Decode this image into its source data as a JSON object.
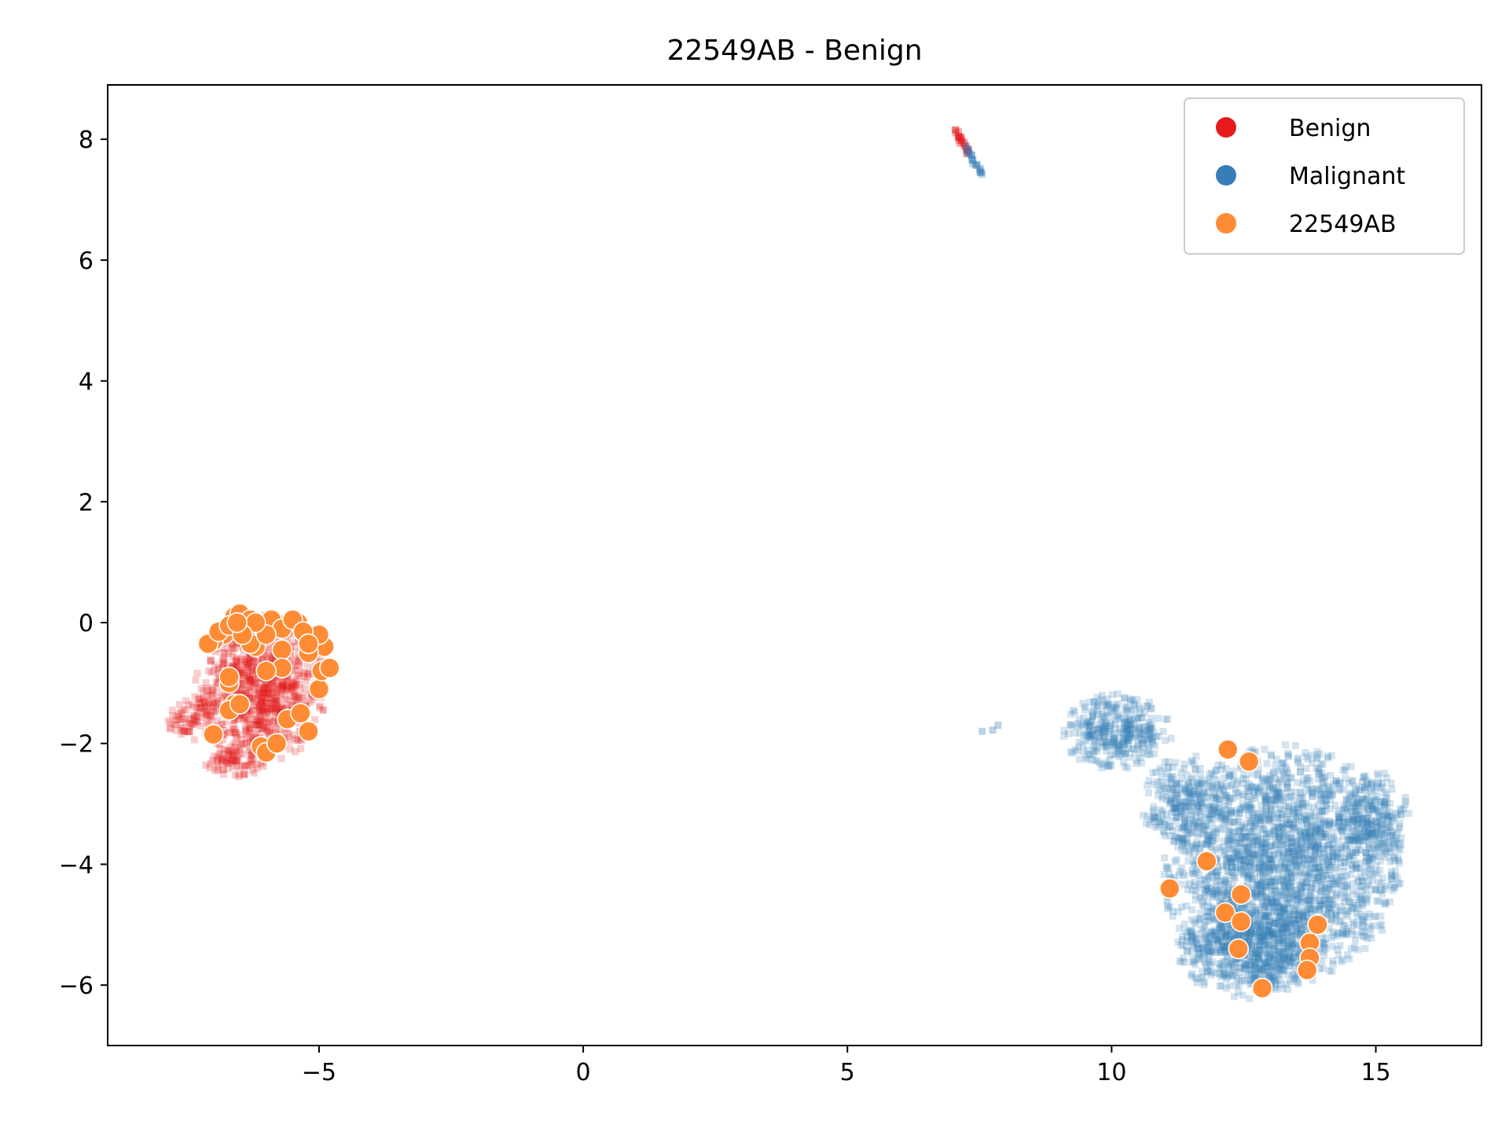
{
  "chart_data": {
    "type": "scatter",
    "title": "22549AB - Benign",
    "xlabel": "",
    "ylabel": "",
    "xlim": [
      -9.0,
      17.0
    ],
    "ylim": [
      -7.0,
      8.9
    ],
    "xticks": [
      -5,
      0,
      5,
      10,
      15
    ],
    "yticks": [
      -6,
      -4,
      -2,
      0,
      2,
      4,
      6,
      8
    ],
    "xtick_labels": [
      "−5",
      "0",
      "5",
      "10",
      "15"
    ],
    "ytick_labels": [
      "−6",
      "−4",
      "−2",
      "0",
      "2",
      "4",
      "6",
      "8"
    ],
    "grid": false,
    "legend_position": "top-right",
    "legend": [
      {
        "label": "Benign",
        "color": "#e41a1c"
      },
      {
        "label": "Malignant",
        "color": "#377eb8"
      },
      {
        "label": "22549AB",
        "color": "#ff8c35"
      }
    ],
    "background_series": [
      {
        "name": "Benign",
        "color": "#e41a1c",
        "clusters": [
          {
            "cx": -6.1,
            "cy": -1.1,
            "rx": 1.2,
            "ry": 1.2,
            "count": 900
          },
          {
            "cx": -7.4,
            "cy": -1.6,
            "rx": 0.5,
            "ry": 0.35,
            "count": 80
          },
          {
            "cx": -6.6,
            "cy": -2.3,
            "rx": 0.6,
            "ry": 0.25,
            "count": 80
          }
        ],
        "segments": [
          {
            "x0": 7.05,
            "y0": 8.15,
            "x1": 7.3,
            "y1": 7.75,
            "count": 25
          }
        ]
      },
      {
        "name": "Malignant",
        "color": "#377eb8",
        "clusters": [
          {
            "cx": 13.2,
            "cy": -4.0,
            "rx": 2.2,
            "ry": 1.9,
            "count": 2200
          },
          {
            "cx": 12.6,
            "cy": -5.4,
            "rx": 1.3,
            "ry": 0.8,
            "count": 600
          },
          {
            "cx": 10.1,
            "cy": -1.8,
            "rx": 1.0,
            "ry": 0.6,
            "count": 350
          },
          {
            "cx": 11.4,
            "cy": -3.0,
            "rx": 0.8,
            "ry": 0.8,
            "count": 250
          },
          {
            "cx": 15.0,
            "cy": -3.2,
            "rx": 0.6,
            "ry": 0.7,
            "count": 200
          }
        ],
        "points": [
          {
            "x": 7.55,
            "y": -1.8
          },
          {
            "x": 7.75,
            "y": -1.78
          },
          {
            "x": 7.85,
            "y": -1.7
          }
        ],
        "segments": [
          {
            "x0": 7.25,
            "y0": 7.85,
            "x1": 7.55,
            "y1": 7.4,
            "count": 20
          }
        ]
      }
    ],
    "series": [
      {
        "name": "22549AB",
        "color": "#ff8c35",
        "points": [
          [
            -7.0,
            -1.85
          ],
          [
            -6.6,
            -1.35
          ],
          [
            -6.7,
            -1.45
          ],
          [
            -6.7,
            -1.0
          ],
          [
            -6.7,
            -0.9
          ],
          [
            -6.5,
            -1.35
          ],
          [
            -6.1,
            -2.05
          ],
          [
            -6.0,
            -2.15
          ],
          [
            -5.8,
            -2.0
          ],
          [
            -5.6,
            -1.6
          ],
          [
            -5.35,
            -1.5
          ],
          [
            -5.2,
            -1.8
          ],
          [
            -5.0,
            -1.1
          ],
          [
            -4.95,
            -0.8
          ],
          [
            -4.8,
            -0.75
          ],
          [
            -4.9,
            -0.4
          ],
          [
            -5.2,
            -0.5
          ],
          [
            -5.0,
            -0.2
          ],
          [
            -5.4,
            0.0
          ],
          [
            -5.7,
            -0.45
          ],
          [
            -5.7,
            -0.75
          ],
          [
            -6.0,
            -0.8
          ],
          [
            -6.2,
            -0.4
          ],
          [
            -6.3,
            -0.35
          ],
          [
            -6.4,
            0.05
          ],
          [
            -6.6,
            0.1
          ],
          [
            -6.8,
            -0.2
          ],
          [
            -7.0,
            -0.3
          ],
          [
            -7.1,
            -0.35
          ],
          [
            -6.9,
            -0.15
          ],
          [
            -6.7,
            -0.05
          ],
          [
            -6.5,
            0.15
          ],
          [
            -6.3,
            0.05
          ],
          [
            -6.1,
            -0.05
          ],
          [
            -5.9,
            0.05
          ],
          [
            -5.7,
            -0.1
          ],
          [
            -5.5,
            0.05
          ],
          [
            -5.3,
            -0.15
          ],
          [
            -5.2,
            -0.35
          ],
          [
            -6.0,
            -0.2
          ],
          [
            -6.2,
            0.0
          ],
          [
            -6.45,
            -0.2
          ],
          [
            -6.55,
            0.0
          ],
          [
            12.2,
            -2.1
          ],
          [
            12.6,
            -2.3
          ],
          [
            11.8,
            -3.95
          ],
          [
            11.1,
            -4.4
          ],
          [
            12.45,
            -4.5
          ],
          [
            12.15,
            -4.8
          ],
          [
            12.45,
            -4.95
          ],
          [
            12.4,
            -5.4
          ],
          [
            13.9,
            -5.0
          ],
          [
            13.75,
            -5.3
          ],
          [
            13.75,
            -5.55
          ],
          [
            13.7,
            -5.75
          ],
          [
            12.85,
            -6.05
          ]
        ]
      }
    ]
  }
}
